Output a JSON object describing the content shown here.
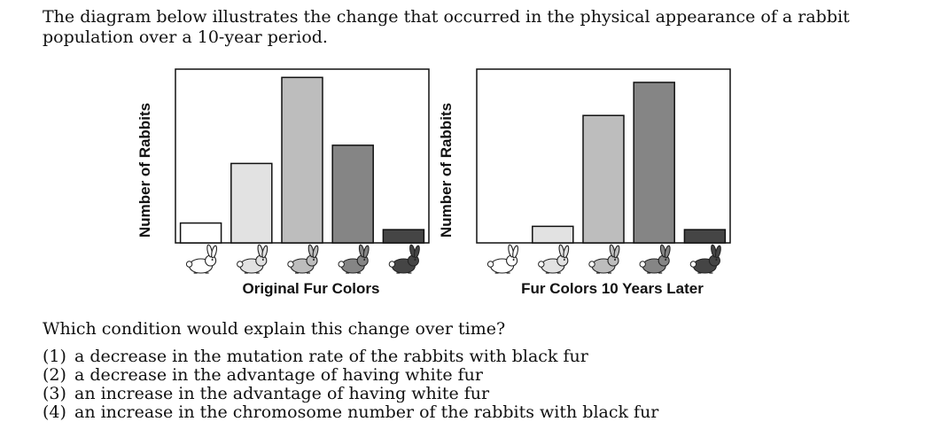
{
  "intro": "The diagram below illustrates the change that occurred in the physical appearance of a rabbit population over a 10-year period.",
  "chart_data": [
    {
      "type": "bar",
      "categories": [
        "white",
        "light gray",
        "gray",
        "dark gray",
        "black"
      ],
      "values": [
        12,
        48,
        100,
        59,
        8
      ],
      "colors": [
        "#ffffff",
        "#e2e2e2",
        "#bdbdbd",
        "#858585",
        "#454545"
      ],
      "ylim": [
        0,
        105
      ],
      "xlabel": "Original Fur Colors",
      "ylabel": "Number of Rabbits",
      "grid": false
    },
    {
      "type": "bar",
      "categories": [
        "white",
        "light gray",
        "gray",
        "dark gray",
        "black"
      ],
      "values": [
        0,
        10,
        77,
        97,
        8
      ],
      "colors": [
        "#ffffff",
        "#e2e2e2",
        "#bdbdbd",
        "#858585",
        "#454545"
      ],
      "ylim": [
        0,
        105
      ],
      "xlabel": "Fur Colors 10 Years Later",
      "ylabel": "Number of Rabbits",
      "grid": false
    }
  ],
  "question": "Which condition would explain this change over time?",
  "options": [
    {
      "num": "(1)",
      "text": "a decrease in the mutation rate of the rabbits with black fur"
    },
    {
      "num": "(2)",
      "text": "a decrease in the advantage of having white fur"
    },
    {
      "num": "(3)",
      "text": "an increase in the advantage of having white fur"
    },
    {
      "num": "(4)",
      "text": "an increase in the chromosome number of the rabbits with black fur"
    }
  ]
}
